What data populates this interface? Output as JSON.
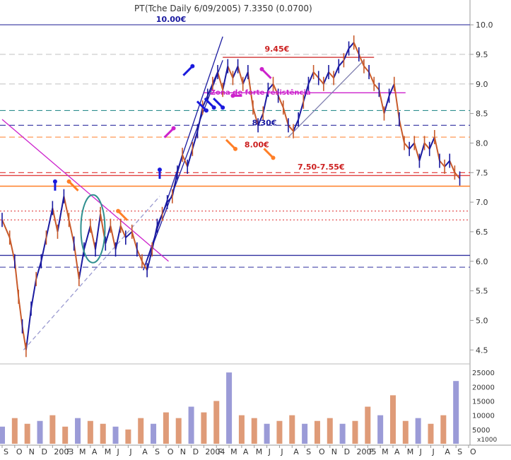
{
  "chart_data": {
    "type": "line",
    "title": "PT",
    "title_overlapped": "(Tche Daily 6/09/2005) 7.3350 (0.0700)",
    "price_axis": {
      "ylim": [
        4.3,
        10.3
      ],
      "ticks": [
        "10.0",
        "9.5",
        "9.0",
        "8.5",
        "8.0",
        "7.5",
        "7.0",
        "6.5",
        "6.0",
        "5.5",
        "5.0",
        "4.5"
      ]
    },
    "volume_axis": {
      "ylim": [
        0,
        28000
      ],
      "ticks": [
        "25000",
        "20000",
        "15000",
        "10000",
        "5000"
      ],
      "multiplier_label": "x1000"
    },
    "x_tick_labels": [
      "S",
      "O",
      "N",
      "D",
      "2003",
      "F",
      "M",
      "A",
      "M",
      "J",
      "J",
      "A",
      "S",
      "O",
      "N",
      "D",
      "2004",
      "F",
      "M",
      "A",
      "M",
      "J",
      "J",
      "A",
      "S",
      "O",
      "N",
      "D",
      "2005",
      "F",
      "M",
      "A",
      "M",
      "J",
      "J",
      "A",
      "S",
      "O"
    ],
    "price_series": [
      {
        "x": 0,
        "y": 6.7
      },
      {
        "x": 0.6,
        "y": 6.4
      },
      {
        "x": 1,
        "y": 6.0
      },
      {
        "x": 1.3,
        "y": 5.4
      },
      {
        "x": 1.6,
        "y": 4.9
      },
      {
        "x": 1.9,
        "y": 4.5
      },
      {
        "x": 2.3,
        "y": 5.2
      },
      {
        "x": 2.7,
        "y": 5.7
      },
      {
        "x": 3.1,
        "y": 6.0
      },
      {
        "x": 3.5,
        "y": 6.4
      },
      {
        "x": 4,
        "y": 6.9
      },
      {
        "x": 4.4,
        "y": 6.5
      },
      {
        "x": 4.9,
        "y": 7.1
      },
      {
        "x": 5.3,
        "y": 6.7
      },
      {
        "x": 5.7,
        "y": 6.3
      },
      {
        "x": 6.1,
        "y": 5.7
      },
      {
        "x": 6.5,
        "y": 6.2
      },
      {
        "x": 7,
        "y": 6.6
      },
      {
        "x": 7.4,
        "y": 6.2
      },
      {
        "x": 7.8,
        "y": 6.8
      },
      {
        "x": 8.2,
        "y": 6.3
      },
      {
        "x": 8.6,
        "y": 6.6
      },
      {
        "x": 9,
        "y": 6.2
      },
      {
        "x": 9.4,
        "y": 6.6
      },
      {
        "x": 9.8,
        "y": 6.4
      },
      {
        "x": 10.3,
        "y": 6.5
      },
      {
        "x": 10.7,
        "y": 6.2
      },
      {
        "x": 11.1,
        "y": 6.0
      },
      {
        "x": 11.5,
        "y": 5.85
      },
      {
        "x": 11.9,
        "y": 6.2
      },
      {
        "x": 12.3,
        "y": 6.6
      },
      {
        "x": 12.7,
        "y": 6.8
      },
      {
        "x": 13.1,
        "y": 7.0
      },
      {
        "x": 13.5,
        "y": 7.1
      },
      {
        "x": 13.9,
        "y": 7.5
      },
      {
        "x": 14.3,
        "y": 7.8
      },
      {
        "x": 14.7,
        "y": 7.6
      },
      {
        "x": 15.1,
        "y": 7.9
      },
      {
        "x": 15.5,
        "y": 8.2
      },
      {
        "x": 15.9,
        "y": 8.6
      },
      {
        "x": 16.3,
        "y": 8.8
      },
      {
        "x": 16.7,
        "y": 9.0
      },
      {
        "x": 17.1,
        "y": 9.2
      },
      {
        "x": 17.5,
        "y": 8.9
      },
      {
        "x": 17.9,
        "y": 9.3
      },
      {
        "x": 18.3,
        "y": 9.1
      },
      {
        "x": 18.7,
        "y": 9.3
      },
      {
        "x": 19.1,
        "y": 9.0
      },
      {
        "x": 19.5,
        "y": 9.2
      },
      {
        "x": 19.9,
        "y": 8.6
      },
      {
        "x": 20.3,
        "y": 8.3
      },
      {
        "x": 20.7,
        "y": 8.5
      },
      {
        "x": 21.1,
        "y": 8.9
      },
      {
        "x": 21.5,
        "y": 9.0
      },
      {
        "x": 21.9,
        "y": 8.8
      },
      {
        "x": 22.3,
        "y": 8.6
      },
      {
        "x": 22.7,
        "y": 8.3
      },
      {
        "x": 23.1,
        "y": 8.2
      },
      {
        "x": 23.5,
        "y": 8.4
      },
      {
        "x": 23.9,
        "y": 8.7
      },
      {
        "x": 24.3,
        "y": 9.0
      },
      {
        "x": 24.7,
        "y": 9.2
      },
      {
        "x": 25.1,
        "y": 9.1
      },
      {
        "x": 25.5,
        "y": 9.0
      },
      {
        "x": 25.9,
        "y": 9.2
      },
      {
        "x": 26.3,
        "y": 9.1
      },
      {
        "x": 26.7,
        "y": 9.3
      },
      {
        "x": 27.1,
        "y": 9.4
      },
      {
        "x": 27.5,
        "y": 9.6
      },
      {
        "x": 27.9,
        "y": 9.7
      },
      {
        "x": 28.3,
        "y": 9.5
      },
      {
        "x": 28.7,
        "y": 9.3
      },
      {
        "x": 29.1,
        "y": 9.2
      },
      {
        "x": 29.5,
        "y": 9.0
      },
      {
        "x": 29.9,
        "y": 8.9
      },
      {
        "x": 30.3,
        "y": 8.5
      },
      {
        "x": 30.7,
        "y": 8.8
      },
      {
        "x": 31.1,
        "y": 9.0
      },
      {
        "x": 31.5,
        "y": 8.4
      },
      {
        "x": 31.9,
        "y": 8.0
      },
      {
        "x": 32.3,
        "y": 7.9
      },
      {
        "x": 32.7,
        "y": 8.0
      },
      {
        "x": 33.1,
        "y": 7.7
      },
      {
        "x": 33.5,
        "y": 8.0
      },
      {
        "x": 33.9,
        "y": 7.9
      },
      {
        "x": 34.3,
        "y": 8.1
      },
      {
        "x": 34.7,
        "y": 7.7
      },
      {
        "x": 35.1,
        "y": 7.6
      },
      {
        "x": 35.5,
        "y": 7.7
      },
      {
        "x": 35.9,
        "y": 7.5
      },
      {
        "x": 36.3,
        "y": 7.4
      }
    ],
    "volume_series": [
      {
        "x": 0,
        "v": 6000
      },
      {
        "x": 1,
        "v": 9000
      },
      {
        "x": 2,
        "v": 7000
      },
      {
        "x": 3,
        "v": 8000
      },
      {
        "x": 4,
        "v": 10000
      },
      {
        "x": 5,
        "v": 6000
      },
      {
        "x": 6,
        "v": 9000
      },
      {
        "x": 7,
        "v": 8000
      },
      {
        "x": 8,
        "v": 7000
      },
      {
        "x": 9,
        "v": 6000
      },
      {
        "x": 10,
        "v": 5000
      },
      {
        "x": 11,
        "v": 9000
      },
      {
        "x": 12,
        "v": 7000
      },
      {
        "x": 13,
        "v": 11000
      },
      {
        "x": 14,
        "v": 9000
      },
      {
        "x": 15,
        "v": 13000
      },
      {
        "x": 16,
        "v": 11000
      },
      {
        "x": 17,
        "v": 15000
      },
      {
        "x": 18,
        "v": 25000
      },
      {
        "x": 19,
        "v": 10000
      },
      {
        "x": 20,
        "v": 9000
      },
      {
        "x": 21,
        "v": 7000
      },
      {
        "x": 22,
        "v": 8000
      },
      {
        "x": 23,
        "v": 10000
      },
      {
        "x": 24,
        "v": 7000
      },
      {
        "x": 25,
        "v": 8000
      },
      {
        "x": 26,
        "v": 9000
      },
      {
        "x": 27,
        "v": 7000
      },
      {
        "x": 28,
        "v": 8000
      },
      {
        "x": 29,
        "v": 13000
      },
      {
        "x": 30,
        "v": 10000
      },
      {
        "x": 31,
        "v": 17000
      },
      {
        "x": 32,
        "v": 8000
      },
      {
        "x": 33,
        "v": 9000
      },
      {
        "x": 34,
        "v": 7000
      },
      {
        "x": 35,
        "v": 10000
      },
      {
        "x": 36,
        "v": 22000
      }
    ],
    "levels": [
      {
        "y": 10.0,
        "style": "solid",
        "color": "#5858b0"
      },
      {
        "y": 9.5,
        "style": "dash",
        "color": "#c8c8c8"
      },
      {
        "y": 9.0,
        "style": "dash",
        "color": "#c8c8c8"
      },
      {
        "y": 8.55,
        "style": "dash",
        "color": "#2f8f8f"
      },
      {
        "y": 8.3,
        "style": "dash",
        "color": "#3030a0"
      },
      {
        "y": 8.1,
        "style": "dash",
        "color": "#ff8c40"
      },
      {
        "y": 7.5,
        "style": "dash",
        "color": "#e03030"
      },
      {
        "y": 7.45,
        "style": "solid",
        "color": "#e04040"
      },
      {
        "y": 7.27,
        "style": "solid",
        "color": "#ff7f27"
      },
      {
        "y": 6.85,
        "style": "dot",
        "color": "#e04040"
      },
      {
        "y": 6.7,
        "style": "dot",
        "color": "#e04040"
      },
      {
        "y": 6.1,
        "style": "solid",
        "color": "#3030a0"
      },
      {
        "y": 5.9,
        "style": "dash",
        "color": "#3030a0"
      }
    ],
    "segments": [
      {
        "x1": 11.2,
        "y1": 5.85,
        "x2": 17.5,
        "y2": 9.8,
        "color": "#1a1aa0"
      },
      {
        "x1": 11.2,
        "y1": 5.85,
        "x2": 17.5,
        "y2": 9.4,
        "color": "#1a1aa0"
      },
      {
        "x1": 0,
        "y1": 8.4,
        "x2": 13.2,
        "y2": 6.0,
        "color": "#cc22cc"
      },
      {
        "x1": 1.7,
        "y1": 4.5,
        "x2": 12.5,
        "y2": 7.1,
        "color": "#9a9ad0",
        "dash": true
      },
      {
        "x1": 17.5,
        "y1": 9.45,
        "x2": 29.5,
        "y2": 9.45,
        "color": "#cc2020"
      },
      {
        "x1": 16.0,
        "y1": 8.85,
        "x2": 32,
        "y2": 8.85,
        "color": "#cc22cc"
      },
      {
        "x1": 22.7,
        "y1": 8.1,
        "x2": 28.7,
        "y2": 9.4,
        "color": "#8080b0"
      }
    ],
    "annotations": [
      {
        "text": "10.00€",
        "x": 13.4,
        "y": 10.05,
        "color": "#1a1aa0"
      },
      {
        "text": "9.45€",
        "x": 21.8,
        "y": 9.55,
        "color": "#cc2020"
      },
      {
        "text": "8.30€",
        "x": 20.8,
        "y": 8.3,
        "color": "#1a1aa0"
      },
      {
        "text": "8.00€",
        "x": 20.2,
        "y": 7.93,
        "color": "#cc2020"
      },
      {
        "text": "7.50-7.55€",
        "x": 25.3,
        "y": 7.55,
        "color": "#cc2020"
      },
      {
        "text": "Zona de forte resistência",
        "x": 20.5,
        "y": 8.82,
        "color": "#cc22cc"
      }
    ],
    "arrows": [
      {
        "x": 4.2,
        "y": 7.35,
        "dir": "down",
        "color": "#1a1add"
      },
      {
        "x": 5.3,
        "y": 7.35,
        "dir": "down-left",
        "color": "#ff7f27"
      },
      {
        "x": 9.2,
        "y": 6.85,
        "dir": "down-left",
        "color": "#ff7f27"
      },
      {
        "x": 12.5,
        "y": 7.55,
        "dir": "down",
        "color": "#1a1add"
      },
      {
        "x": 15.1,
        "y": 9.3,
        "dir": "down-right",
        "color": "#1a1add"
      },
      {
        "x": 16.2,
        "y": 8.55,
        "dir": "up-right",
        "color": "#1a1add"
      },
      {
        "x": 16.8,
        "y": 8.6,
        "dir": "up-right",
        "color": "#1a1add"
      },
      {
        "x": 17.5,
        "y": 8.6,
        "dir": "up-right",
        "color": "#1a1add"
      },
      {
        "x": 18.3,
        "y": 8.8,
        "dir": "left",
        "color": "#cc22cc"
      },
      {
        "x": 20.6,
        "y": 9.25,
        "dir": "down-left",
        "color": "#cc22cc"
      },
      {
        "x": 13.6,
        "y": 8.25,
        "dir": "down-right",
        "color": "#cc22cc"
      },
      {
        "x": 18.5,
        "y": 7.9,
        "dir": "up-right",
        "color": "#ff7f27"
      },
      {
        "x": 21.5,
        "y": 7.75,
        "dir": "up-right",
        "color": "#ff7f27"
      }
    ],
    "colors": {
      "candle": "#1a1aa0",
      "candle_alt": "#c85a2a",
      "volume_up": "#d98a60",
      "volume_down": "#8a8ad0",
      "ellipse": "#2f8f8f"
    },
    "grid": false,
    "legend": "none"
  }
}
